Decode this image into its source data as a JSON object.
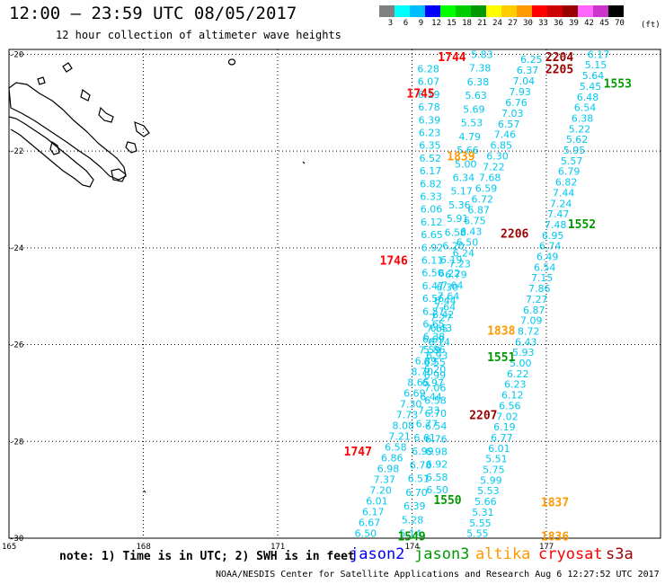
{
  "header": {
    "title": "12:00 – 23:59 UTC 08/05/2017",
    "subtitle": "12 hour collection of altimeter wave heights"
  },
  "legend": {
    "unit": "(ft)",
    "bins": [
      {
        "label": "3",
        "color": "#808080"
      },
      {
        "label": "6",
        "color": "#00ffff"
      },
      {
        "label": "9",
        "color": "#00bfff"
      },
      {
        "label": "12",
        "color": "#0000ff"
      },
      {
        "label": "15",
        "color": "#00ff00"
      },
      {
        "label": "18",
        "color": "#00cc00"
      },
      {
        "label": "21",
        "color": "#009900"
      },
      {
        "label": "24",
        "color": "#ffff00"
      },
      {
        "label": "27",
        "color": "#ffcc00"
      },
      {
        "label": "30",
        "color": "#ff9900"
      },
      {
        "label": "33",
        "color": "#ff0000"
      },
      {
        "label": "36",
        "color": "#cc0000"
      },
      {
        "label": "39",
        "color": "#990000"
      },
      {
        "label": "42",
        "color": "#ff66ff"
      },
      {
        "label": "45",
        "color": "#cc33cc"
      },
      {
        "label": "70",
        "color": "#000000"
      }
    ]
  },
  "axes": {
    "lat_labels": [
      "-20",
      "-22",
      "-24",
      "-26",
      "-28",
      "-30"
    ],
    "lon_labels": [
      "165",
      "168",
      "171",
      "174",
      "177"
    ]
  },
  "colors": {
    "swh_text": "#00c8f0",
    "jason2": "#0000ff",
    "jason3": "#009900",
    "altika": "#ff9900",
    "cryosat": "#ff0000",
    "s3a": "#990000"
  },
  "chart_data": {
    "type": "scatter",
    "x_range": [
      165,
      179.5
    ],
    "y_range": [
      -30,
      -19.8
    ],
    "swh_tracks": [
      {
        "name": "track_a",
        "lon_start": 176.7,
        "lon_end": 173.0,
        "lat_start": -20.1,
        "lat_end": -29.9,
        "values": [
          "6.25",
          "6.37",
          "7.04",
          "7.93",
          "6.76",
          "7.03",
          "6.57",
          "7.46",
          "6.85",
          "6.30",
          "7.22",
          "7.68",
          "6.59",
          "6.72",
          "6.87",
          "6.75",
          "6.43",
          "6.50",
          "6.24",
          "7.23",
          "6.79",
          "7.64",
          "7.64",
          "7.64",
          "7.27",
          "7.65",
          "6.69",
          "7.59",
          "6.89",
          "8.70",
          "8.65",
          "6.69",
          "7.30",
          "7.73",
          "8.08",
          "7.21",
          "6.58",
          "6.86",
          "6.98",
          "7.37",
          "7.20",
          "6.01",
          "6.17",
          "6.67",
          "6.50"
        ]
      },
      {
        "name": "track_b",
        "lon_start": 174.4,
        "lon_end": 174.6,
        "lat_start": -20.3,
        "lat_end": -29.0,
        "values": [
          "6.28",
          "6.07",
          "6.19",
          "6.78",
          "6.39",
          "6.23",
          "6.35",
          "6.52",
          "6.17",
          "6.82",
          "6.33",
          "6.06",
          "6.12",
          "6.65",
          "6.92",
          "6.11",
          "6.50",
          "6.47",
          "6.56",
          "6.57",
          "6.65",
          "6.38",
          "5.86",
          "6.55",
          "6.99",
          "7.06",
          "6.58",
          "6.70",
          "6.54",
          "6.76",
          "6.98",
          "6.92",
          "6.58",
          "6.50"
        ]
      },
      {
        "name": "track_c",
        "lon_start": 175.6,
        "lon_end": 174.0,
        "lat_start": -20.0,
        "lat_end": -29.9,
        "values": [
          "5.83",
          "7.38",
          "6.38",
          "5.63",
          "5.69",
          "5.53",
          "4.79",
          "5.66",
          "5.00",
          "6.34",
          "5.17",
          "5.36",
          "5.91",
          "6.58",
          "6.20",
          "6.19",
          "6.22",
          "6.30",
          "6.44",
          "6.42",
          "6.43",
          "6.14",
          "6.93",
          "6.20",
          "6.97",
          "6.44",
          "7.33",
          "6.77",
          "6.61",
          "6.99",
          "6.78",
          "6.51",
          "6.70",
          "6.39",
          "5.28",
          "5.14"
        ]
      },
      {
        "name": "track_d",
        "lon_start": 178.2,
        "lon_end": 175.5,
        "lat_start": -20.0,
        "lat_end": -29.9,
        "values": [
          "6.17",
          "5.15",
          "5.64",
          "5.45",
          "6.48",
          "6.54",
          "6.38",
          "5.22",
          "5.62",
          "5.95",
          "5.57",
          "6.79",
          "6.82",
          "7.44",
          "7.24",
          "7.47",
          "7.48",
          "6.95",
          "6.74",
          "6.49",
          "6.54",
          "7.15",
          "7.86",
          "7.27",
          "6.87",
          "7.09",
          "8.72",
          "6.43",
          "5.93",
          "5.00",
          "6.22",
          "6.23",
          "6.12",
          "6.56",
          "7.02",
          "6.19",
          "6.77",
          "6.01",
          "5.51",
          "5.75",
          "5.99",
          "5.53",
          "5.66",
          "5.31",
          "5.55",
          "5.55"
        ]
      }
    ],
    "pass_times": [
      {
        "label": "1744",
        "sat": "cryosat"
      },
      {
        "label": "1745",
        "sat": "cryosat"
      },
      {
        "label": "1746",
        "sat": "cryosat"
      },
      {
        "label": "1747",
        "sat": "cryosat"
      },
      {
        "label": "2204",
        "sat": "s3a"
      },
      {
        "label": "2205",
        "sat": "s3a"
      },
      {
        "label": "2206",
        "sat": "s3a"
      },
      {
        "label": "2207",
        "sat": "s3a"
      },
      {
        "label": "1553",
        "sat": "jason3"
      },
      {
        "label": "1552",
        "sat": "jason3"
      },
      {
        "label": "1551",
        "sat": "jason3"
      },
      {
        "label": "1550",
        "sat": "jason3"
      },
      {
        "label": "1549",
        "sat": "jason3"
      },
      {
        "label": "1839",
        "sat": "altika"
      },
      {
        "label": "1838",
        "sat": "altika"
      },
      {
        "label": "1837",
        "sat": "altika"
      },
      {
        "label": "1836",
        "sat": "altika"
      }
    ]
  },
  "footer": {
    "note": "note: 1) Time is in UTC; 2) SWH is in feet",
    "satellites": [
      "jason2",
      "jason3",
      "altika",
      "cryosat",
      "s3a"
    ],
    "credit": "NOAA/NESDIS Center for Satellite Applications and Research   Aug  6 12:27:52 UTC 2017"
  }
}
